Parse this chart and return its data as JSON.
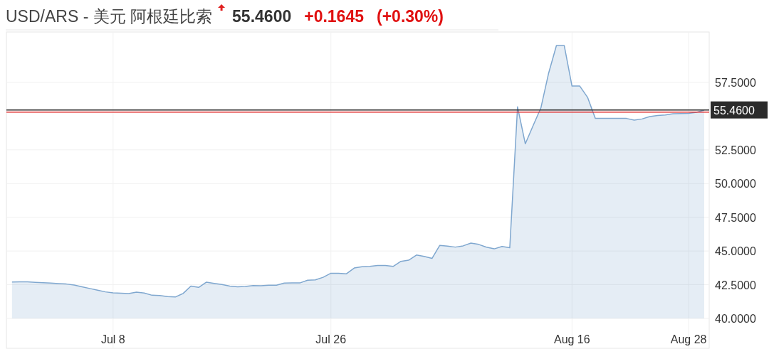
{
  "chart_data": {
    "type": "area",
    "title": "USD/ARS - 美元 阿根廷比索",
    "annotations": [
      "55.4600",
      "+0.1645",
      "(+0.30%)"
    ],
    "categories": [
      null,
      null,
      null,
      null,
      null,
      null,
      null,
      null,
      null,
      null,
      null,
      null,
      null,
      "Jul 8",
      null,
      null,
      null,
      null,
      null,
      null,
      null,
      null,
      null,
      null,
      null,
      null,
      null,
      null,
      null,
      null,
      null,
      null,
      null,
      null,
      null,
      null,
      null,
      null,
      null,
      null,
      null,
      "Jul 26",
      null,
      null,
      null,
      null,
      null,
      null,
      null,
      null,
      null,
      null,
      null,
      null,
      null,
      null,
      null,
      null,
      null,
      null,
      null,
      null,
      null,
      null,
      null,
      null,
      null,
      null,
      null,
      null,
      null,
      null,
      "Aug 16",
      null,
      null,
      null,
      null,
      null,
      null,
      null,
      null,
      null,
      null,
      null,
      null,
      null,
      null,
      "Aug 28",
      null,
      null
    ],
    "series": [
      {
        "color": "#7fa7cf",
        "values": [
          42.7,
          42.72,
          42.72,
          42.68,
          42.65,
          42.62,
          42.58,
          42.55,
          42.48,
          42.35,
          42.22,
          42.09,
          41.97,
          41.9,
          41.87,
          41.84,
          41.95,
          41.88,
          41.72,
          41.7,
          41.62,
          41.59,
          41.85,
          42.4,
          42.3,
          42.69,
          42.6,
          42.52,
          42.4,
          42.35,
          42.37,
          42.44,
          42.43,
          42.46,
          42.46,
          42.62,
          42.63,
          42.63,
          42.83,
          42.86,
          43.05,
          43.35,
          43.35,
          43.31,
          43.74,
          43.83,
          43.86,
          43.93,
          43.92,
          43.86,
          44.23,
          44.32,
          44.7,
          44.6,
          44.45,
          45.42,
          45.36,
          45.29,
          45.38,
          45.59,
          45.49,
          45.28,
          45.16,
          45.34,
          45.24,
          55.69,
          52.95,
          54.3,
          55.61,
          58.2,
          60.24,
          60.24,
          57.23,
          57.23,
          56.4,
          54.83,
          54.83,
          54.83,
          54.83,
          54.83,
          54.71,
          54.79,
          54.97,
          55.05,
          55.09,
          55.18,
          55.19,
          55.21,
          55.28,
          55.46
        ]
      }
    ],
    "ylim": [
      40,
      61.24
    ],
    "yticks": [
      {
        "value": 40,
        "label": "40.0000"
      },
      {
        "value": 42.5,
        "label": "42.5000"
      },
      {
        "value": 45,
        "label": "45.0000"
      },
      {
        "value": 47.5,
        "label": "47.5000"
      },
      {
        "value": 50,
        "label": "50.0000"
      },
      {
        "value": 52.5,
        "label": "52.5000"
      },
      {
        "value": 57.5,
        "label": "57.5000"
      }
    ],
    "ref_lines": [
      {
        "axis": "y",
        "value": 55.46,
        "label": "55.4600",
        "color": "#2b2b2b"
      },
      {
        "axis": "y",
        "value": 55.3,
        "color": "#e03030"
      }
    ],
    "grid": true
  }
}
